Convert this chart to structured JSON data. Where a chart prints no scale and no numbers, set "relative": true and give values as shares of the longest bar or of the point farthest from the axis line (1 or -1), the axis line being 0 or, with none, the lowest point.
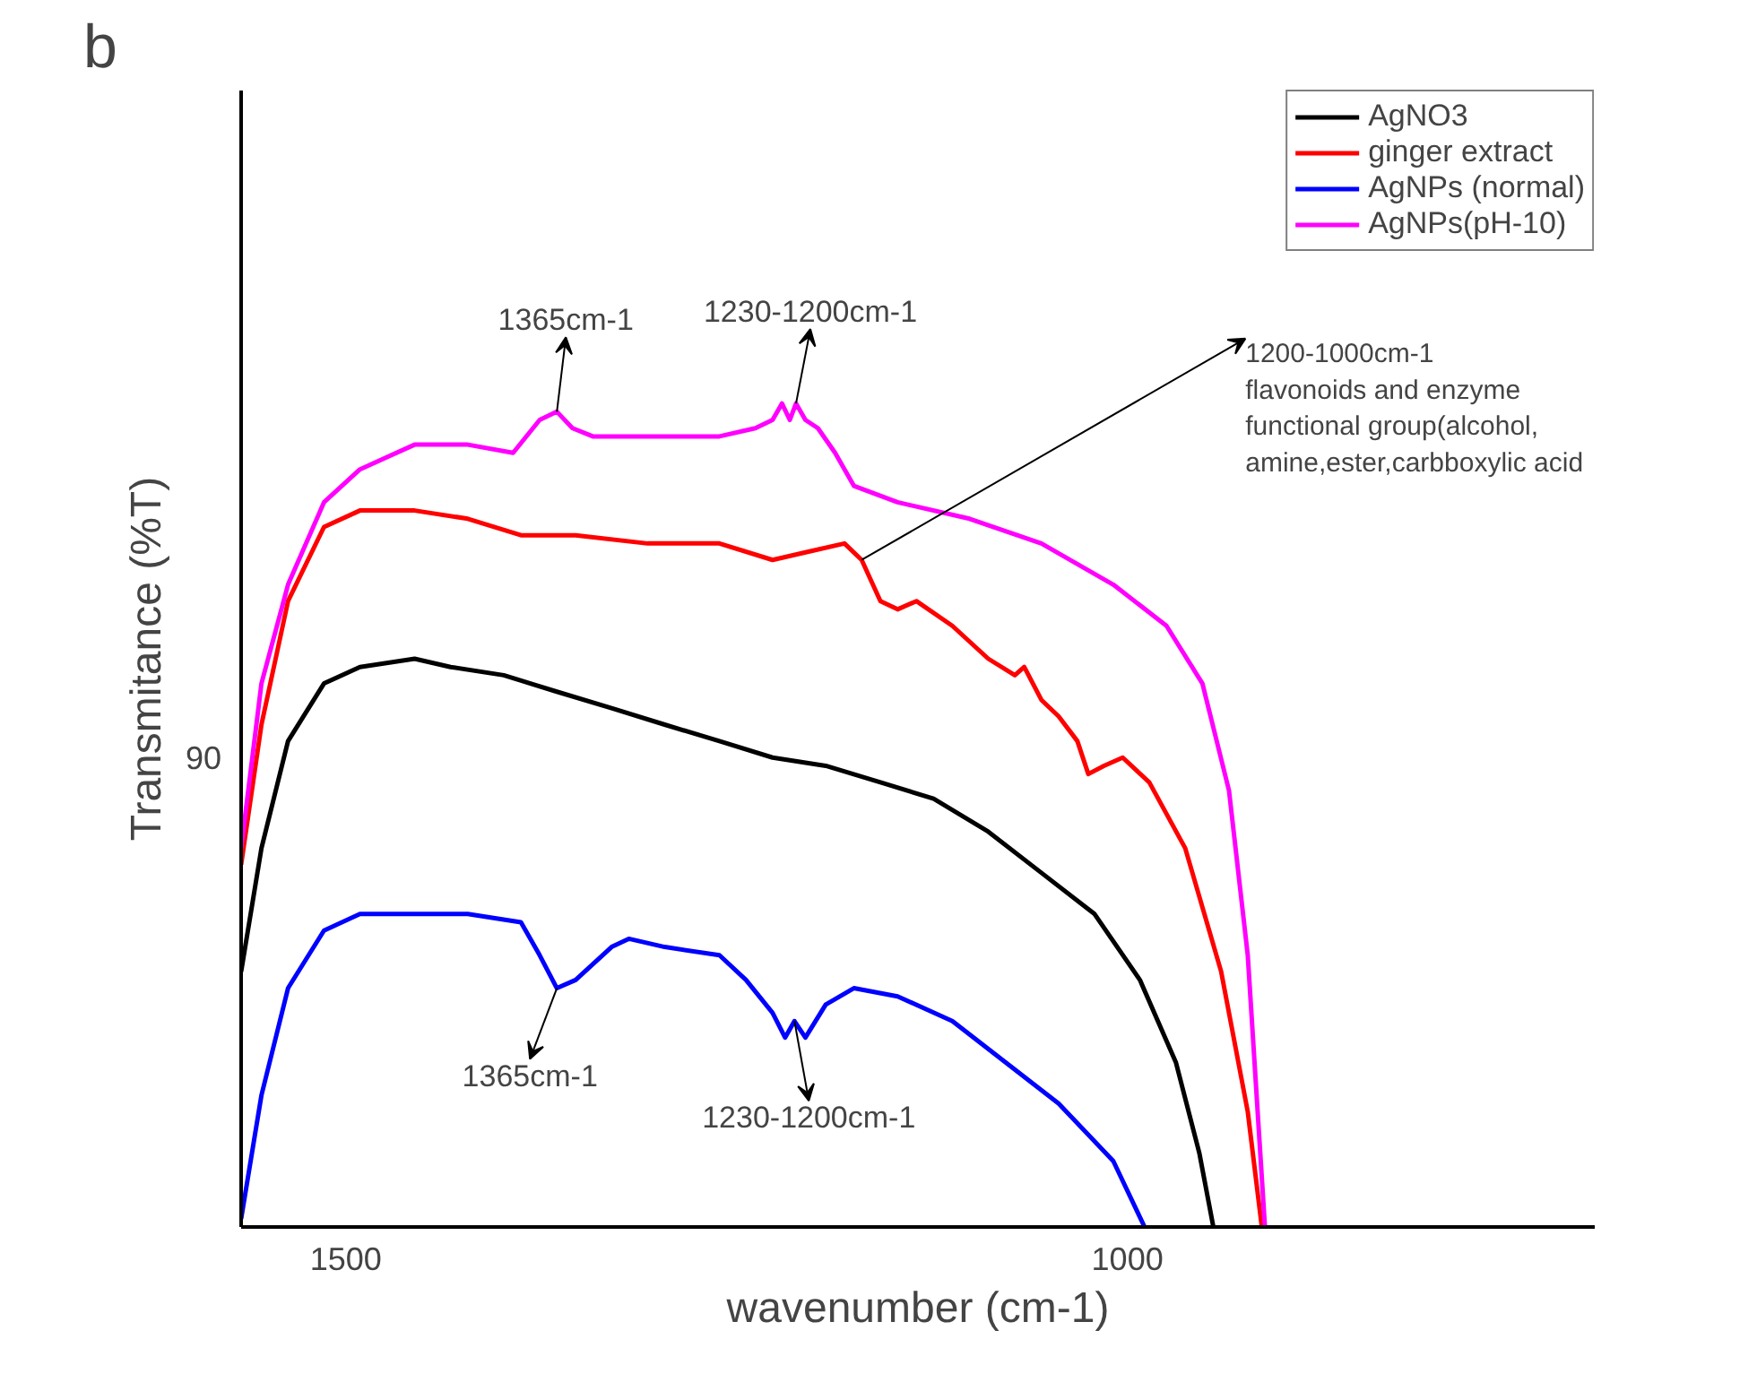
{
  "chart_data": {
    "type": "line",
    "relative": true,
    "xlabel": "wavenumber (cm-1)",
    "ylabel": "Transmitance (%T)",
    "xlim": [
      1567,
      701
    ],
    "xticks": [
      1500,
      1000
    ],
    "legend": "top right",
    "grid": false,
    "marker": "none",
    "line_style": "solid",
    "series": [
      {
        "name": "AgNO3",
        "color": "#000000",
        "x": [
          1567,
          1554,
          1537,
          1514,
          1491,
          1456,
          1433,
          1399,
          1365,
          1330,
          1296,
          1261,
          1227,
          1193,
          1158,
          1124,
          1089,
          1055,
          1021,
          992,
          969,
          954,
          945
        ],
        "values": [
          0.31,
          0.46,
          0.59,
          0.66,
          0.68,
          0.69,
          0.68,
          0.67,
          0.65,
          0.63,
          0.61,
          0.59,
          0.57,
          0.56,
          0.54,
          0.52,
          0.48,
          0.43,
          0.38,
          0.3,
          0.2,
          0.09,
          0
        ]
      },
      {
        "name": "ginger extract",
        "color": "#ff0000",
        "x": [
          1567,
          1554,
          1537,
          1514,
          1491,
          1456,
          1422,
          1388,
          1353,
          1307,
          1261,
          1227,
          1204,
          1181,
          1170,
          1158,
          1147,
          1135,
          1112,
          1089,
          1072,
          1066,
          1055,
          1044,
          1032,
          1025,
          1015,
          1003,
          986,
          963,
          940,
          923,
          914
        ],
        "values": [
          0.44,
          0.61,
          0.76,
          0.85,
          0.87,
          0.87,
          0.86,
          0.84,
          0.84,
          0.83,
          0.83,
          0.81,
          0.82,
          0.83,
          0.81,
          0.76,
          0.75,
          0.76,
          0.73,
          0.69,
          0.67,
          0.68,
          0.64,
          0.62,
          0.59,
          0.55,
          0.56,
          0.57,
          0.54,
          0.46,
          0.31,
          0.14,
          0
        ]
      },
      {
        "name": "AgNPs (normal)",
        "color": "#0000ff",
        "x": [
          1567,
          1554,
          1537,
          1514,
          1491,
          1456,
          1422,
          1388,
          1376,
          1365,
          1353,
          1330,
          1319,
          1296,
          1261,
          1244,
          1227,
          1219,
          1213,
          1206,
          1193,
          1175,
          1147,
          1112,
          1078,
          1044,
          1009,
          989
        ],
        "values": [
          0.01,
          0.16,
          0.29,
          0.36,
          0.38,
          0.38,
          0.38,
          0.37,
          0.33,
          0.29,
          0.3,
          0.34,
          0.35,
          0.34,
          0.33,
          0.3,
          0.26,
          0.23,
          0.25,
          0.23,
          0.27,
          0.29,
          0.28,
          0.25,
          0.2,
          0.15,
          0.08,
          0
        ]
      },
      {
        "name": "AgNPs(pH-10)",
        "color": "#ff00ff",
        "x": [
          1567,
          1554,
          1537,
          1514,
          1491,
          1456,
          1422,
          1393,
          1376,
          1365,
          1355,
          1342,
          1307,
          1261,
          1238,
          1227,
          1221,
          1216,
          1212,
          1206,
          1198,
          1187,
          1175,
          1147,
          1101,
          1055,
          1009,
          975,
          952,
          935,
          923,
          912
        ],
        "values": [
          0.46,
          0.66,
          0.78,
          0.88,
          0.92,
          0.95,
          0.95,
          0.94,
          0.98,
          0.99,
          0.97,
          0.96,
          0.96,
          0.96,
          0.97,
          0.98,
          1.0,
          0.98,
          1.0,
          0.98,
          0.97,
          0.94,
          0.9,
          0.88,
          0.86,
          0.83,
          0.78,
          0.73,
          0.66,
          0.53,
          0.33,
          0
        ]
      }
    ],
    "annotations": [
      "b",
      {
        "text": "1365cm-1",
        "x": 1365,
        "y": 0.99
      },
      {
        "text": "1230-1200cm-1",
        "x": 1212,
        "y": 1.0
      },
      {
        "text": "1200-1000cm-1\nflavonoids and enzyme\n functional group(alcohol,\namine,ester,carbboxylic acid",
        "x": 1170,
        "y": 0.81
      },
      {
        "text": "1365cm-1",
        "x": 1365,
        "y": 0.29
      },
      {
        "text": "1230-1200cm-1",
        "x": 1213,
        "y": 0.25
      },
      "90"
    ]
  }
}
